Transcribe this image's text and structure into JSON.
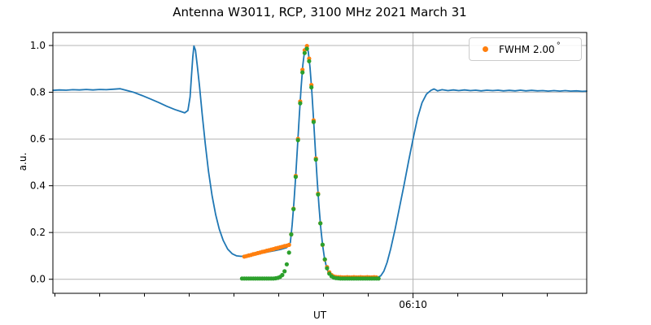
{
  "chart": {
    "title": "Antenna W3011, RCP, 3100 MHz 2021 March 31",
    "xlabel": "UT",
    "ylabel": "a.u.",
    "legend": {
      "label": "FWHM 2.00",
      "degree": "°",
      "marker_color": "#ff7f0e",
      "position": "upper right"
    },
    "colors": {
      "line": "#1f77b4",
      "fwhm_dots": "#ff7f0e",
      "subtracted_dots": "#2ca02c",
      "grid": "#b4b4b4",
      "spine": "#000000",
      "text": "#000000"
    },
    "axes": {
      "x": {
        "unit": "minutes after 06:00 UT",
        "min": 1.955,
        "max": 13.88,
        "major_ticks": [
          {
            "value": 10,
            "label": "06:10"
          }
        ],
        "minor_ticks": [
          2,
          3,
          4,
          5,
          6,
          7,
          8,
          9,
          11,
          12,
          13
        ]
      },
      "y": {
        "min": -0.06,
        "max": 1.056,
        "ticks": [
          0.0,
          0.2,
          0.4,
          0.6,
          0.8,
          1.0
        ],
        "tick_labels": [
          "0.0",
          "0.2",
          "0.4",
          "0.6",
          "0.8",
          "1.0"
        ],
        "grid": true
      }
    }
  },
  "chart_data": {
    "type": "line+scatter",
    "x_unit": "minutes after 06:00 UT",
    "y_unit": "a.u.",
    "series": [
      {
        "name": "drift-scan-signal",
        "type": "line",
        "color": "#1f77b4",
        "points": [
          [
            1.955,
            0.808
          ],
          [
            2.1,
            0.81
          ],
          [
            2.25,
            0.809
          ],
          [
            2.4,
            0.811
          ],
          [
            2.55,
            0.81
          ],
          [
            2.7,
            0.812
          ],
          [
            2.85,
            0.81
          ],
          [
            3.0,
            0.812
          ],
          [
            3.15,
            0.811
          ],
          [
            3.3,
            0.813
          ],
          [
            3.46,
            0.815
          ],
          [
            3.6,
            0.808
          ],
          [
            3.77,
            0.799
          ],
          [
            3.95,
            0.786
          ],
          [
            4.14,
            0.771
          ],
          [
            4.32,
            0.756
          ],
          [
            4.5,
            0.74
          ],
          [
            4.68,
            0.726
          ],
          [
            4.82,
            0.717
          ],
          [
            4.9,
            0.712
          ],
          [
            4.97,
            0.722
          ],
          [
            5.02,
            0.78
          ],
          [
            5.05,
            0.87
          ],
          [
            5.08,
            0.95
          ],
          [
            5.105,
            0.998
          ],
          [
            5.14,
            0.98
          ],
          [
            5.18,
            0.915
          ],
          [
            5.23,
            0.825
          ],
          [
            5.29,
            0.705
          ],
          [
            5.36,
            0.578
          ],
          [
            5.43,
            0.462
          ],
          [
            5.51,
            0.358
          ],
          [
            5.59,
            0.277
          ],
          [
            5.67,
            0.215
          ],
          [
            5.76,
            0.166
          ],
          [
            5.86,
            0.129
          ],
          [
            5.96,
            0.109
          ],
          [
            6.06,
            0.1
          ],
          [
            6.16,
            0.098
          ],
          [
            6.28,
            0.1
          ],
          [
            6.42,
            0.105
          ],
          [
            6.58,
            0.11
          ],
          [
            6.74,
            0.116
          ],
          [
            6.9,
            0.122
          ],
          [
            7.05,
            0.128
          ],
          [
            7.17,
            0.135
          ],
          [
            7.22,
            0.143
          ],
          [
            7.26,
            0.157
          ],
          [
            7.3,
            0.232
          ],
          [
            7.34,
            0.328
          ],
          [
            7.38,
            0.442
          ],
          [
            7.42,
            0.569
          ],
          [
            7.46,
            0.699
          ],
          [
            7.5,
            0.819
          ],
          [
            7.54,
            0.918
          ],
          [
            7.58,
            0.98
          ],
          [
            7.617,
            1.0
          ],
          [
            7.66,
            0.974
          ],
          [
            7.7,
            0.905
          ],
          [
            7.74,
            0.803
          ],
          [
            7.78,
            0.68
          ],
          [
            7.82,
            0.549
          ],
          [
            7.86,
            0.423
          ],
          [
            7.9,
            0.312
          ],
          [
            7.94,
            0.219
          ],
          [
            7.98,
            0.147
          ],
          [
            8.02,
            0.094
          ],
          [
            8.06,
            0.058
          ],
          [
            8.1,
            0.034
          ],
          [
            8.15,
            0.016
          ],
          [
            8.2,
            0.007
          ],
          [
            8.27,
            0.004
          ],
          [
            8.35,
            0.003
          ],
          [
            8.5,
            0.003
          ],
          [
            8.65,
            0.004
          ],
          [
            8.8,
            0.003
          ],
          [
            8.95,
            0.004
          ],
          [
            9.1,
            0.004
          ],
          [
            9.2,
            0.007
          ],
          [
            9.28,
            0.015
          ],
          [
            9.35,
            0.035
          ],
          [
            9.42,
            0.072
          ],
          [
            9.5,
            0.13
          ],
          [
            9.6,
            0.215
          ],
          [
            9.7,
            0.31
          ],
          [
            9.8,
            0.405
          ],
          [
            9.9,
            0.505
          ],
          [
            10.0,
            0.6
          ],
          [
            10.1,
            0.69
          ],
          [
            10.2,
            0.755
          ],
          [
            10.3,
            0.792
          ],
          [
            10.4,
            0.808
          ],
          [
            10.47,
            0.814
          ],
          [
            10.55,
            0.806
          ],
          [
            10.65,
            0.811
          ],
          [
            10.78,
            0.807
          ],
          [
            10.9,
            0.81
          ],
          [
            11.02,
            0.807
          ],
          [
            11.15,
            0.81
          ],
          [
            11.28,
            0.807
          ],
          [
            11.4,
            0.809
          ],
          [
            11.52,
            0.806
          ],
          [
            11.65,
            0.809
          ],
          [
            11.78,
            0.807
          ],
          [
            11.9,
            0.809
          ],
          [
            12.02,
            0.806
          ],
          [
            12.15,
            0.808
          ],
          [
            12.28,
            0.806
          ],
          [
            12.4,
            0.809
          ],
          [
            12.52,
            0.806
          ],
          [
            12.65,
            0.808
          ],
          [
            12.78,
            0.806
          ],
          [
            12.9,
            0.807
          ],
          [
            13.02,
            0.805
          ],
          [
            13.15,
            0.807
          ],
          [
            13.28,
            0.805
          ],
          [
            13.4,
            0.807
          ],
          [
            13.52,
            0.805
          ],
          [
            13.65,
            0.806
          ],
          [
            13.78,
            0.804
          ],
          [
            13.88,
            0.805
          ]
        ]
      },
      {
        "name": "fwhm-fit-samples",
        "type": "scatter",
        "color": "#ff7f0e",
        "legend_label": "FWHM 2.00°",
        "points": [
          [
            6.23,
            0.097
          ],
          [
            6.28,
            0.099
          ],
          [
            6.33,
            0.102
          ],
          [
            6.38,
            0.104
          ],
          [
            6.43,
            0.107
          ],
          [
            6.48,
            0.109
          ],
          [
            6.53,
            0.112
          ],
          [
            6.58,
            0.114
          ],
          [
            6.63,
            0.117
          ],
          [
            6.68,
            0.119
          ],
          [
            6.73,
            0.122
          ],
          [
            6.78,
            0.124
          ],
          [
            6.83,
            0.127
          ],
          [
            6.88,
            0.129
          ],
          [
            6.93,
            0.132
          ],
          [
            6.98,
            0.134
          ],
          [
            7.03,
            0.137
          ],
          [
            7.08,
            0.139
          ],
          [
            7.13,
            0.142
          ],
          [
            7.18,
            0.144
          ],
          [
            7.23,
            0.147
          ],
          [
            7.28,
            0.192
          ],
          [
            7.33,
            0.302
          ],
          [
            7.38,
            0.442
          ],
          [
            7.43,
            0.601
          ],
          [
            7.48,
            0.761
          ],
          [
            7.53,
            0.896
          ],
          [
            7.58,
            0.98
          ],
          [
            7.63,
            0.998
          ],
          [
            7.68,
            0.944
          ],
          [
            7.73,
            0.831
          ],
          [
            7.78,
            0.68
          ],
          [
            7.83,
            0.517
          ],
          [
            7.88,
            0.366
          ],
          [
            7.93,
            0.24
          ],
          [
            7.98,
            0.147
          ],
          [
            8.03,
            0.084
          ],
          [
            8.08,
            0.052
          ],
          [
            8.13,
            0.03
          ],
          [
            8.18,
            0.018
          ],
          [
            8.23,
            0.012
          ],
          [
            8.28,
            0.01
          ],
          [
            8.33,
            0.009
          ],
          [
            8.38,
            0.009
          ],
          [
            8.43,
            0.008
          ],
          [
            8.48,
            0.008
          ],
          [
            8.53,
            0.009
          ],
          [
            8.58,
            0.008
          ],
          [
            8.63,
            0.008
          ],
          [
            8.68,
            0.009
          ],
          [
            8.73,
            0.008
          ],
          [
            8.78,
            0.008
          ],
          [
            8.83,
            0.009
          ],
          [
            8.88,
            0.008
          ],
          [
            8.93,
            0.008
          ],
          [
            8.98,
            0.009
          ],
          [
            9.03,
            0.008
          ],
          [
            9.08,
            0.008
          ],
          [
            9.13,
            0.009
          ],
          [
            9.18,
            0.008
          ]
        ]
      },
      {
        "name": "baseline-subtracted-samples",
        "type": "scatter",
        "color": "#2ca02c",
        "points": [
          [
            6.18,
            0.003
          ],
          [
            6.23,
            0.003
          ],
          [
            6.28,
            0.003
          ],
          [
            6.33,
            0.003
          ],
          [
            6.38,
            0.003
          ],
          [
            6.43,
            0.003
          ],
          [
            6.48,
            0.003
          ],
          [
            6.53,
            0.003
          ],
          [
            6.58,
            0.003
          ],
          [
            6.63,
            0.003
          ],
          [
            6.68,
            0.003
          ],
          [
            6.73,
            0.003
          ],
          [
            6.78,
            0.003
          ],
          [
            6.83,
            0.003
          ],
          [
            6.88,
            0.003
          ],
          [
            6.93,
            0.004
          ],
          [
            6.98,
            0.006
          ],
          [
            7.03,
            0.01
          ],
          [
            7.08,
            0.018
          ],
          [
            7.13,
            0.034
          ],
          [
            7.18,
            0.064
          ],
          [
            7.23,
            0.114
          ],
          [
            7.28,
            0.192
          ],
          [
            7.33,
            0.3
          ],
          [
            7.38,
            0.438
          ],
          [
            7.43,
            0.595
          ],
          [
            7.48,
            0.753
          ],
          [
            7.53,
            0.885
          ],
          [
            7.58,
            0.968
          ],
          [
            7.63,
            0.986
          ],
          [
            7.68,
            0.933
          ],
          [
            7.73,
            0.821
          ],
          [
            7.78,
            0.673
          ],
          [
            7.83,
            0.512
          ],
          [
            7.88,
            0.363
          ],
          [
            7.93,
            0.239
          ],
          [
            7.98,
            0.148
          ],
          [
            8.03,
            0.085
          ],
          [
            8.08,
            0.047
          ],
          [
            8.13,
            0.024
          ],
          [
            8.18,
            0.013
          ],
          [
            8.23,
            0.007
          ],
          [
            8.28,
            0.005
          ],
          [
            8.33,
            0.004
          ],
          [
            8.38,
            0.003
          ],
          [
            8.43,
            0.003
          ],
          [
            8.48,
            0.003
          ],
          [
            8.53,
            0.003
          ],
          [
            8.58,
            0.003
          ],
          [
            8.63,
            0.003
          ],
          [
            8.68,
            0.003
          ],
          [
            8.73,
            0.003
          ],
          [
            8.78,
            0.003
          ],
          [
            8.83,
            0.003
          ],
          [
            8.88,
            0.003
          ],
          [
            8.93,
            0.003
          ],
          [
            8.98,
            0.003
          ],
          [
            9.03,
            0.003
          ],
          [
            9.08,
            0.003
          ],
          [
            9.13,
            0.003
          ],
          [
            9.18,
            0.003
          ],
          [
            9.23,
            0.003
          ]
        ]
      }
    ]
  }
}
